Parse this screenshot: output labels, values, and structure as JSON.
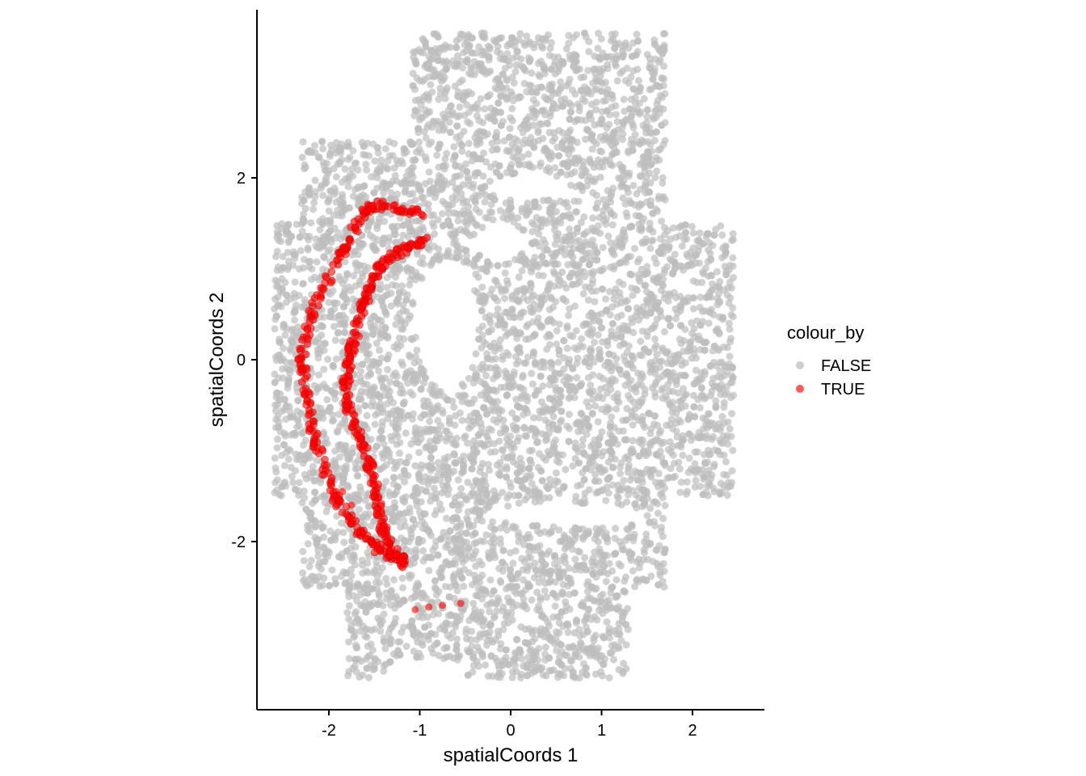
{
  "chart_data": {
    "type": "scatter",
    "xlabel": "spatialCoords 1",
    "ylabel": "spatialCoords 2",
    "xlim": [
      -2.8,
      2.8
    ],
    "ylim": [
      -3.8,
      3.9
    ],
    "x_ticks": [
      -2,
      -1,
      0,
      1,
      2
    ],
    "y_ticks": [
      -2,
      0,
      2
    ],
    "x_tick_labels": [
      "-2",
      "-1",
      "0",
      "1",
      "2"
    ],
    "y_tick_labels": [
      "-2",
      "0",
      "2"
    ],
    "grid": false,
    "legend": {
      "title": "colour_by",
      "placement": "right",
      "entries": [
        {
          "label": "FALSE",
          "color": "#bebebe"
        },
        {
          "label": "TRUE",
          "color": "#ff0000"
        }
      ]
    },
    "series": [
      {
        "name": "FALSE",
        "color": "#bebebe",
        "description_region": "dense tissue section roughly spanning x -2.5..2.5, y -3.5..3.6"
      },
      {
        "name": "TRUE",
        "color": "#ff0000",
        "outer_arc": [
          [
            -1.0,
            1.6
          ],
          [
            -1.2,
            1.65
          ],
          [
            -1.45,
            1.7
          ],
          [
            -1.6,
            1.65
          ],
          [
            -1.7,
            1.45
          ],
          [
            -1.85,
            1.2
          ],
          [
            -2.0,
            0.9
          ],
          [
            -2.15,
            0.6
          ],
          [
            -2.25,
            0.3
          ],
          [
            -2.3,
            0.0
          ],
          [
            -2.25,
            -0.3
          ],
          [
            -2.2,
            -0.6
          ],
          [
            -2.15,
            -0.9
          ],
          [
            -2.05,
            -1.2
          ],
          [
            -1.95,
            -1.5
          ],
          [
            -1.8,
            -1.7
          ],
          [
            -1.65,
            -1.9
          ],
          [
            -1.5,
            -2.05
          ],
          [
            -1.35,
            -2.15
          ],
          [
            -1.15,
            -2.2
          ]
        ],
        "inner_arc": [
          [
            -0.95,
            1.3
          ],
          [
            -1.1,
            1.25
          ],
          [
            -1.3,
            1.15
          ],
          [
            -1.45,
            1.0
          ],
          [
            -1.55,
            0.8
          ],
          [
            -1.62,
            0.6
          ],
          [
            -1.7,
            0.35
          ],
          [
            -1.75,
            0.1
          ],
          [
            -1.8,
            -0.15
          ],
          [
            -1.82,
            -0.4
          ],
          [
            -1.75,
            -0.65
          ],
          [
            -1.65,
            -0.9
          ],
          [
            -1.55,
            -1.15
          ],
          [
            -1.5,
            -1.4
          ],
          [
            -1.45,
            -1.65
          ],
          [
            -1.4,
            -1.9
          ],
          [
            -1.3,
            -2.1
          ],
          [
            -1.15,
            -2.25
          ]
        ],
        "stray_points": [
          [
            -1.05,
            -2.75
          ],
          [
            -0.75,
            -2.7
          ],
          [
            -0.55,
            -2.68
          ],
          [
            -0.9,
            -2.72
          ],
          [
            -1.85,
            -1.45
          ],
          [
            -1.95,
            -1.5
          ],
          [
            -1.75,
            -1.6
          ]
        ]
      }
    ]
  }
}
